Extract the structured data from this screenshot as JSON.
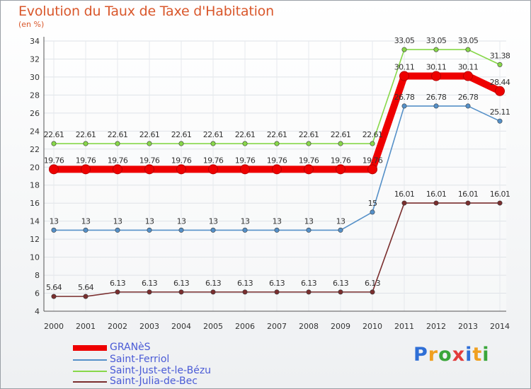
{
  "chart_data": {
    "type": "line",
    "title": "Evolution du Taux de Taxe d'Habitation",
    "subtitle": "(en %)",
    "x": [
      "2000",
      "2001",
      "2002",
      "2003",
      "2004",
      "2005",
      "2006",
      "2007",
      "2008",
      "2009",
      "2010",
      "2011",
      "2012",
      "2013",
      "2014"
    ],
    "ylim": [
      4,
      34
    ],
    "yticks": [
      4,
      6,
      8,
      10,
      12,
      14,
      16,
      18,
      20,
      22,
      24,
      26,
      28,
      30,
      32,
      34
    ],
    "grid": true,
    "legend_position": "bottom-left",
    "series": [
      {
        "name": "GRANèS",
        "color": "#ee0000",
        "values": [
          19.76,
          19.76,
          19.76,
          19.76,
          19.76,
          19.76,
          19.76,
          19.76,
          19.76,
          19.76,
          19.76,
          30.11,
          30.11,
          30.11,
          28.44
        ],
        "labels": [
          "19.76",
          "19.76",
          "19.76",
          "19.76",
          "19.76",
          "19.76",
          "19.76",
          "19.76",
          "19.76",
          "19.76",
          "19.76",
          "30.11",
          "30.11",
          "30.11",
          "28.44"
        ]
      },
      {
        "name": "Saint-Ferriol",
        "color": "#5590c8",
        "values": [
          13,
          13,
          13,
          13,
          13,
          13,
          13,
          13,
          13,
          13,
          15,
          26.78,
          26.78,
          26.78,
          25.11
        ],
        "labels": [
          "13",
          "13",
          "13",
          "13",
          "13",
          "13",
          "13",
          "13",
          "13",
          "13",
          "15",
          "26.78",
          "26.78",
          "26.78",
          "25.11"
        ]
      },
      {
        "name": "Saint-Just-et-le-Bézu",
        "color": "#88d84a",
        "values": [
          22.61,
          22.61,
          22.61,
          22.61,
          22.61,
          22.61,
          22.61,
          22.61,
          22.61,
          22.61,
          22.61,
          33.05,
          33.05,
          33.05,
          31.38
        ],
        "labels": [
          "22.61",
          "22.61",
          "22.61",
          "22.61",
          "22.61",
          "22.61",
          "22.61",
          "22.61",
          "22.61",
          "22.61",
          "22.61",
          "33.05",
          "33.05",
          "33.05",
          "31.38"
        ]
      },
      {
        "name": "Saint-Julia-de-Bec",
        "color": "#7a2e2e",
        "values": [
          5.64,
          5.64,
          6.13,
          6.13,
          6.13,
          6.13,
          6.13,
          6.13,
          6.13,
          6.13,
          6.13,
          16.01,
          16.01,
          16.01,
          16.01
        ],
        "labels": [
          "5.64",
          "5.64",
          "6.13",
          "6.13",
          "6.13",
          "6.13",
          "6.13",
          "6.13",
          "6.13",
          "6.13",
          "6.13",
          "16.01",
          "16.01",
          "16.01",
          "16.01"
        ]
      }
    ]
  },
  "brand": {
    "p": "P",
    "r": "r",
    "o": "o",
    "x": "x",
    "i": "i",
    "t": "t",
    "i2": "i"
  }
}
